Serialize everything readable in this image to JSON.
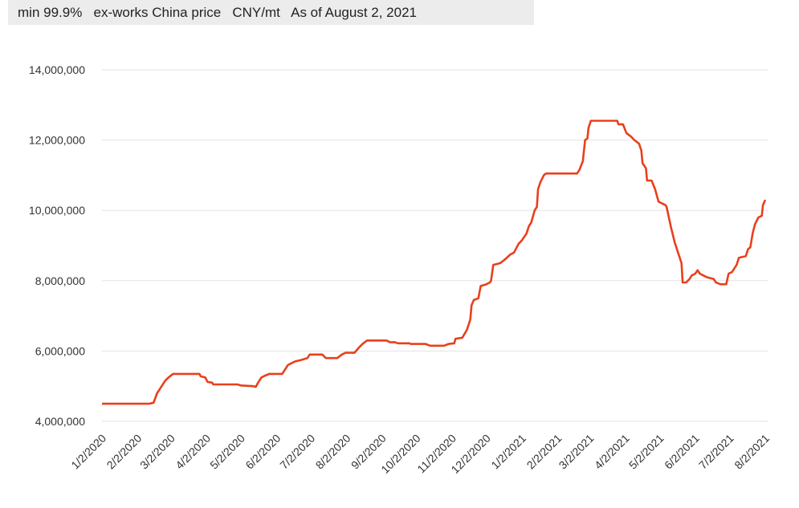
{
  "chart_data": {
    "type": "line",
    "subtitle": "min 99.9%   ex-works China price   CNY/mt   As of August 2, 2021",
    "x": [
      "2020-01-02",
      "2020-02-12",
      "2020-02-16",
      "2020-02-19",
      "2020-02-22",
      "2020-02-26",
      "2020-02-29",
      "2020-03-04",
      "2020-03-27",
      "2020-03-28",
      "2020-04-01",
      "2020-04-03",
      "2020-04-07",
      "2020-04-08",
      "2020-04-29",
      "2020-05-02",
      "2020-05-13",
      "2020-05-15",
      "2020-05-17",
      "2020-05-20",
      "2020-05-23",
      "2020-05-27",
      "2020-06-07",
      "2020-06-10",
      "2020-06-12",
      "2020-06-15",
      "2020-06-18",
      "2020-06-24",
      "2020-06-29",
      "2020-07-01",
      "2020-07-12",
      "2020-07-15",
      "2020-07-25",
      "2020-07-29",
      "2020-08-01",
      "2020-08-09",
      "2020-08-13",
      "2020-08-16",
      "2020-08-20",
      "2020-09-06",
      "2020-09-09",
      "2020-09-13",
      "2020-09-16",
      "2020-09-26",
      "2020-09-27",
      "2020-10-10",
      "2020-10-14",
      "2020-10-26",
      "2020-10-30",
      "2020-11-04",
      "2020-11-05",
      "2020-11-11",
      "2020-11-15",
      "2020-11-18",
      "2020-11-19",
      "2020-11-21",
      "2020-11-25",
      "2020-11-27",
      "2020-12-02",
      "2020-12-05",
      "2020-12-06",
      "2020-12-08",
      "2020-12-14",
      "2020-12-18",
      "2020-12-23",
      "2020-12-26",
      "2020-12-30",
      "2021-01-02",
      "2021-01-06",
      "2021-01-08",
      "2021-01-10",
      "2021-01-13",
      "2021-01-15",
      "2021-01-16",
      "2021-01-18",
      "2021-01-21",
      "2021-01-23",
      "2021-02-19",
      "2021-02-21",
      "2021-02-24",
      "2021-02-26",
      "2021-02-28",
      "2021-03-01",
      "2021-03-03",
      "2021-03-26",
      "2021-03-27",
      "2021-03-31",
      "2021-04-03",
      "2021-04-07",
      "2021-04-10",
      "2021-04-14",
      "2021-04-16",
      "2021-04-17",
      "2021-04-20",
      "2021-04-21",
      "2021-04-25",
      "2021-04-28",
      "2021-05-01",
      "2021-05-07",
      "2021-05-08",
      "2021-05-12",
      "2021-05-15",
      "2021-05-18",
      "2021-05-21",
      "2021-05-22",
      "2021-05-25",
      "2021-05-28",
      "2021-05-30",
      "2021-06-02",
      "2021-06-04",
      "2021-06-06",
      "2021-06-09",
      "2021-06-12",
      "2021-06-18",
      "2021-06-20",
      "2021-06-24",
      "2021-06-29",
      "2021-07-01",
      "2021-07-04",
      "2021-07-08",
      "2021-07-10",
      "2021-07-16",
      "2021-07-18",
      "2021-07-20",
      "2021-07-22",
      "2021-07-24",
      "2021-07-27",
      "2021-07-30",
      "2021-07-31",
      "2021-08-02"
    ],
    "series": [
      {
        "name": "price",
        "color": "#e8401c",
        "values": [
          4500000,
          4500000,
          4530000,
          4800000,
          4950000,
          5150000,
          5250000,
          5350000,
          5350000,
          5280000,
          5250000,
          5120000,
          5100000,
          5050000,
          5050000,
          5020000,
          5000000,
          4980000,
          5100000,
          5250000,
          5300000,
          5350000,
          5350000,
          5500000,
          5600000,
          5650000,
          5700000,
          5750000,
          5800000,
          5900000,
          5900000,
          5800000,
          5800000,
          5900000,
          5950000,
          5950000,
          6100000,
          6200000,
          6300000,
          6300000,
          6250000,
          6250000,
          6220000,
          6220000,
          6200000,
          6200000,
          6150000,
          6150000,
          6200000,
          6220000,
          6350000,
          6380000,
          6600000,
          6900000,
          7300000,
          7450000,
          7500000,
          7850000,
          7900000,
          7950000,
          8000000,
          8450000,
          8500000,
          8600000,
          8750000,
          8800000,
          9050000,
          9150000,
          9350000,
          9550000,
          9650000,
          10000000,
          10100000,
          10600000,
          10800000,
          11000000,
          11050000,
          11050000,
          11150000,
          11400000,
          12000000,
          12050000,
          12350000,
          12550000,
          12550000,
          12450000,
          12450000,
          12200000,
          12100000,
          12000000,
          11900000,
          11700000,
          11350000,
          11200000,
          10850000,
          10850000,
          10600000,
          10250000,
          10150000,
          10100000,
          9500000,
          9100000,
          8800000,
          8500000,
          7950000,
          7950000,
          8050000,
          8150000,
          8200000,
          8300000,
          8200000,
          8150000,
          8100000,
          8050000,
          7950000,
          7900000,
          7900000,
          8200000,
          8250000,
          8450000,
          8650000,
          8700000,
          8900000,
          8950000,
          9350000,
          9600000,
          9800000,
          9850000,
          10150000,
          10300000
        ]
      }
    ],
    "xlim": [
      "2020-01-02",
      "2021-08-02"
    ],
    "xticks": [
      {
        "value": "2020-01-02",
        "label": "1/2/2020"
      },
      {
        "value": "2020-02-02",
        "label": "2/2/2020"
      },
      {
        "value": "2020-03-02",
        "label": "3/2/2020"
      },
      {
        "value": "2020-04-02",
        "label": "4/2/2020"
      },
      {
        "value": "2020-05-02",
        "label": "5/2/2020"
      },
      {
        "value": "2020-06-02",
        "label": "6/2/2020"
      },
      {
        "value": "2020-07-02",
        "label": "7/2/2020"
      },
      {
        "value": "2020-08-02",
        "label": "8/2/2020"
      },
      {
        "value": "2020-09-02",
        "label": "9/2/2020"
      },
      {
        "value": "2020-10-02",
        "label": "10/2/2020"
      },
      {
        "value": "2020-11-02",
        "label": "11/2/2020"
      },
      {
        "value": "2020-12-02",
        "label": "12/2/2020"
      },
      {
        "value": "2021-01-02",
        "label": "1/2/2021"
      },
      {
        "value": "2021-02-02",
        "label": "2/2/2021"
      },
      {
        "value": "2021-03-02",
        "label": "3/2/2021"
      },
      {
        "value": "2021-04-02",
        "label": "4/2/2021"
      },
      {
        "value": "2021-05-02",
        "label": "5/2/2021"
      },
      {
        "value": "2021-06-02",
        "label": "6/2/2021"
      },
      {
        "value": "2021-07-02",
        "label": "7/2/2021"
      },
      {
        "value": "2021-08-02",
        "label": "8/2/2021"
      }
    ],
    "ylim": [
      4000000,
      14000000
    ],
    "yticks": [
      {
        "value": 4000000,
        "label": "4,000,000"
      },
      {
        "value": 6000000,
        "label": "6,000,000"
      },
      {
        "value": 8000000,
        "label": "8,000,000"
      },
      {
        "value": 10000000,
        "label": "10,000,000"
      },
      {
        "value": 12000000,
        "label": "12,000,000"
      },
      {
        "value": 14000000,
        "label": "14,000,000"
      }
    ],
    "grid": true
  }
}
